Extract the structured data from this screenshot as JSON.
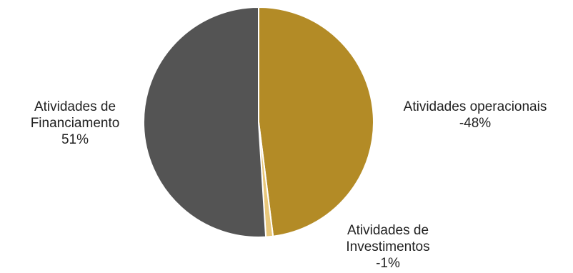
{
  "chart_data": {
    "type": "pie",
    "slices": [
      {
        "label_lines": [
          "Atividades operacionais"
        ],
        "value_label": "-48%",
        "value": 48,
        "color": "#B38B26"
      },
      {
        "label_lines": [
          "Atividades de",
          "Investimentos"
        ],
        "value_label": "-1%",
        "value": 1,
        "color": "#E8C77A"
      },
      {
        "label_lines": [
          "Atividades de",
          "Financiamento"
        ],
        "value_label": "51%",
        "value": 51,
        "color": "#545454"
      }
    ],
    "start_angle_deg": 0,
    "direction": "clockwise",
    "legend": "none",
    "labels": "outside"
  }
}
